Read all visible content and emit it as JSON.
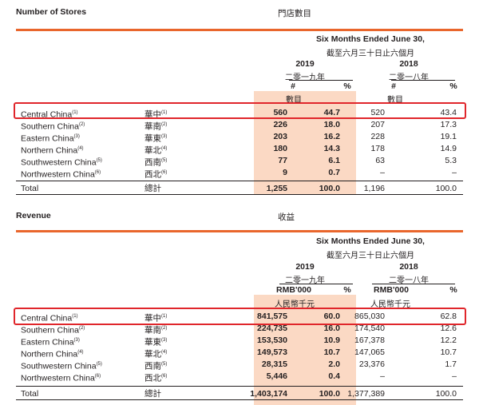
{
  "stores": {
    "title": "Number of Stores",
    "title_cn": "門店數目",
    "period_en": "Six Months Ended June 30,",
    "period_cn": "截至六月三十日止六個月",
    "year1": "2019",
    "year1_cn": "二零一九年",
    "year2": "2018",
    "year2_cn": "二零一八年",
    "unit": "#",
    "unit_cn": "數目",
    "pct": "%",
    "rows": [
      {
        "en": "Central China",
        "n": "(1)",
        "zh": "華中",
        "zn": "(1)",
        "v1": "560",
        "p1": "44.7",
        "v2": "520",
        "p2": "43.4"
      },
      {
        "en": "Southern China",
        "n": "(2)",
        "zh": "華南",
        "zn": "(2)",
        "v1": "226",
        "p1": "18.0",
        "v2": "207",
        "p2": "17.3"
      },
      {
        "en": "Eastern China",
        "n": "(3)",
        "zh": "華東",
        "zn": "(3)",
        "v1": "203",
        "p1": "16.2",
        "v2": "228",
        "p2": "19.1"
      },
      {
        "en": "Northern China",
        "n": "(4)",
        "zh": "華北",
        "zn": "(4)",
        "v1": "180",
        "p1": "14.3",
        "v2": "178",
        "p2": "14.9"
      },
      {
        "en": "Southwestern China",
        "n": "(5)",
        "zh": "西南",
        "zn": "(5)",
        "v1": "77",
        "p1": "6.1",
        "v2": "63",
        "p2": "5.3"
      },
      {
        "en": "Northwestern China",
        "n": "(6)",
        "zh": "西北",
        "zn": "(6)",
        "v1": "9",
        "p1": "0.7",
        "v2": "–",
        "p2": "–"
      }
    ],
    "total": {
      "en": "Total",
      "zh": "總計",
      "v1": "1,255",
      "p1": "100.0",
      "v2": "1,196",
      "p2": "100.0"
    }
  },
  "revenue": {
    "title": "Revenue",
    "title_cn": "收益",
    "period_en": "Six Months Ended June 30,",
    "period_cn": "截至六月三十日止六個月",
    "year1": "2019",
    "year1_cn": "二零一九年",
    "year2": "2018",
    "year2_cn": "二零一八年",
    "unit": "RMB'000",
    "unit_cn": "人民幣千元",
    "pct": "%",
    "rows": [
      {
        "en": "Central China",
        "n": "(1)",
        "zh": "華中",
        "zn": "(1)",
        "v1": "841,575",
        "p1": "60.0",
        "v2": "865,030",
        "p2": "62.8"
      },
      {
        "en": "Southern China",
        "n": "(2)",
        "zh": "華南",
        "zn": "(2)",
        "v1": "224,735",
        "p1": "16.0",
        "v2": "174,540",
        "p2": "12.6"
      },
      {
        "en": "Eastern China",
        "n": "(3)",
        "zh": "華東",
        "zn": "(3)",
        "v1": "153,530",
        "p1": "10.9",
        "v2": "167,378",
        "p2": "12.2"
      },
      {
        "en": "Northern China",
        "n": "(4)",
        "zh": "華北",
        "zn": "(4)",
        "v1": "149,573",
        "p1": "10.7",
        "v2": "147,065",
        "p2": "10.7"
      },
      {
        "en": "Southwestern China",
        "n": "(5)",
        "zh": "西南",
        "zn": "(5)",
        "v1": "28,315",
        "p1": "2.0",
        "v2": "23,376",
        "p2": "1.7"
      },
      {
        "en": "Northwestern China",
        "n": "(6)",
        "zh": "西北",
        "zn": "(6)",
        "v1": "5,446",
        "p1": "0.4",
        "v2": "–",
        "p2": "–"
      }
    ],
    "total": {
      "en": "Total",
      "zh": "總計",
      "v1": "1,403,174",
      "p1": "100.0",
      "v2": "1,377,389",
      "p2": "100.0"
    }
  },
  "highlight_color": "#e0262b",
  "accent_color": "#e9662c",
  "shade_color": "#fbd9c4"
}
